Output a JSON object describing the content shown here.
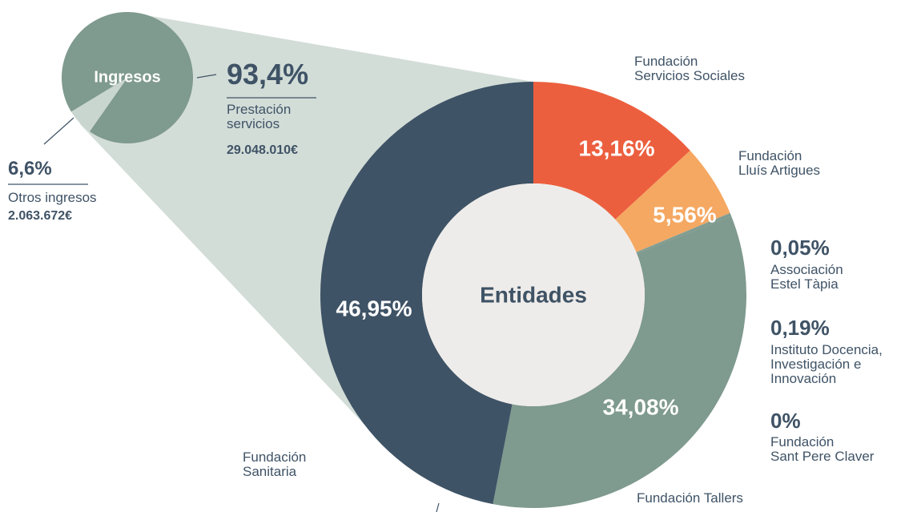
{
  "chart_data": [
    {
      "type": "pie",
      "center_label": "Ingresos",
      "categories": [
        "Prestación\nservicios",
        "Otros ingresos"
      ],
      "values": [
        93.4,
        6.6
      ],
      "value_labels": [
        "93,4%",
        "6,6%"
      ],
      "amounts": [
        "29.048.010€",
        "2.063.672€"
      ],
      "colors": [
        "#7f9a8e",
        "#c9d6cf"
      ]
    },
    {
      "type": "donut",
      "center_label": "Entidades",
      "categories": [
        "Fundación\nServicios Sociales",
        "Fundación\nLluís Artigues",
        "Associación\nEstel Tàpia",
        "Instituto Docencia,\nInvestigación e\nInnovación",
        "Fundación\nSant Pere Claver",
        "Fundación Tallers",
        "Fundación\nSanitaria"
      ],
      "values": [
        13.16,
        5.56,
        0.05,
        0.19,
        0,
        34.08,
        46.95
      ],
      "value_labels": [
        "13,16%",
        "5,56%",
        "0,05%",
        "0,19%",
        "0%",
        "34,08%",
        "46,95%"
      ],
      "colors": [
        "#ec5f3e",
        "#f5a862",
        "#7f9a8e",
        "#7f9a8e",
        "#7f9a8e",
        "#7f9a8e",
        "#3f5366"
      ]
    }
  ]
}
